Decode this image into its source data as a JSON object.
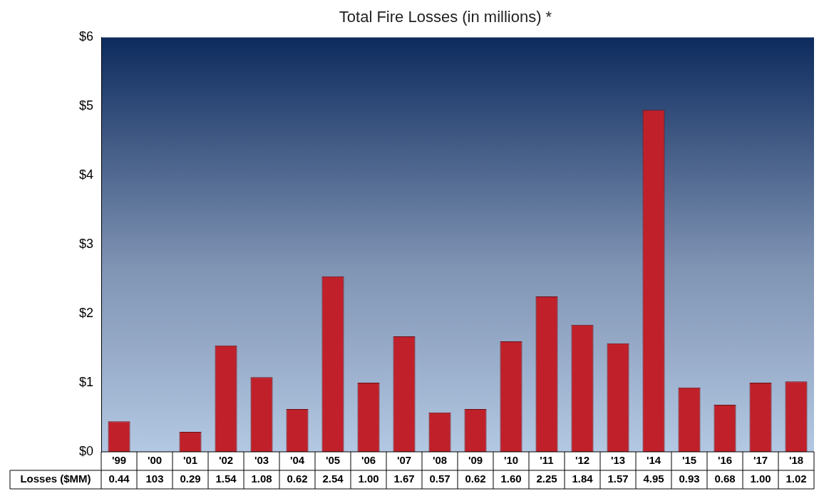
{
  "chart_data": {
    "type": "bar",
    "title": "Total Fire Losses (in millions) *",
    "categories": [
      "'99",
      "'00",
      "'01",
      "'02",
      "'03",
      "'04",
      "'05",
      "'06",
      "'07",
      "'08",
      "'09",
      "'10",
      "'11",
      "'12",
      "'13",
      "'14",
      "'15",
      "'16",
      "'17",
      "'18"
    ],
    "series": [
      {
        "name": "Losses ($MM)",
        "color": "#c0202a",
        "values": [
          0.44,
          null,
          0.29,
          1.54,
          1.08,
          0.62,
          2.54,
          1.0,
          1.67,
          0.57,
          0.62,
          1.6,
          2.25,
          1.84,
          1.57,
          4.95,
          0.93,
          0.68,
          1.0,
          1.02
        ],
        "value_labels": [
          "0.44",
          "103",
          "0.29",
          "1.54",
          "1.08",
          "0.62",
          "2.54",
          "1.00",
          "1.67",
          "0.57",
          "0.62",
          "1.60",
          "2.25",
          "1.84",
          "1.57",
          "4.95",
          "0.93",
          "0.68",
          "1.00",
          "1.02"
        ]
      }
    ],
    "ylim": [
      0,
      6
    ],
    "yticks": [
      {
        "value": 0,
        "label": "$0"
      },
      {
        "value": 1,
        "label": "$1"
      },
      {
        "value": 2,
        "label": "$2"
      },
      {
        "value": 3,
        "label": "$3"
      },
      {
        "value": 4,
        "label": "$4"
      },
      {
        "value": 5,
        "label": "$5"
      },
      {
        "value": 6,
        "label": "$6"
      }
    ],
    "grid": false,
    "legend": false
  }
}
